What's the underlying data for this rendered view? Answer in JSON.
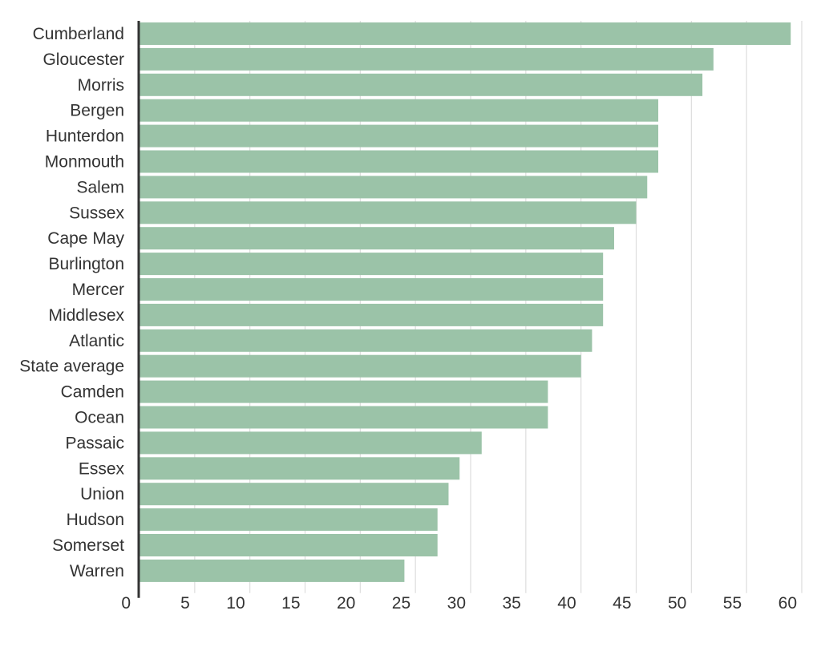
{
  "chart_data": {
    "type": "bar",
    "orientation": "horizontal",
    "title": "",
    "xlabel": "",
    "ylabel": "",
    "categories": [
      "Cumberland",
      "Gloucester",
      "Morris",
      "Bergen",
      "Hunterdon",
      "Monmouth",
      "Salem",
      "Sussex",
      "Cape May",
      "Burlington",
      "Mercer",
      "Middlesex",
      "Atlantic",
      "State average",
      "Camden",
      "Ocean",
      "Passaic",
      "Essex",
      "Union",
      "Hudson",
      "Somerset",
      "Warren"
    ],
    "values": [
      59,
      52,
      51,
      47,
      47,
      47,
      46,
      45,
      43,
      42,
      42,
      42,
      41,
      40,
      37,
      37,
      31,
      29,
      28,
      27,
      27,
      24
    ],
    "xlim": [
      0,
      60
    ],
    "xticks": [
      "0",
      "5",
      "10",
      "15",
      "20",
      "25",
      "30",
      "35",
      "40",
      "45",
      "50",
      "55",
      "60"
    ],
    "grid": true,
    "bar_color": "#9bc3a8",
    "grid_color": "#dddddd",
    "axis_color": "#333333"
  }
}
